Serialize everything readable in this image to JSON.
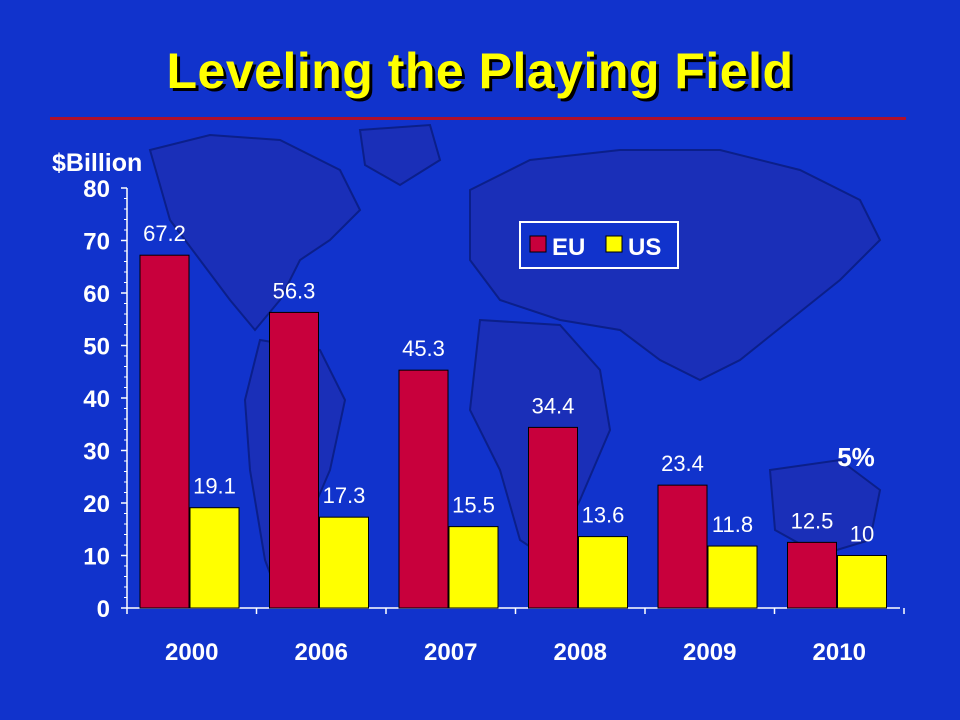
{
  "title": "Leveling the Playing Field",
  "colors": {
    "background": "#1133cc",
    "map": "#1a2fb8",
    "eu": "#c8003c",
    "us": "#ffff00",
    "title": "#ffff00",
    "rule": "#b0102c"
  },
  "chart_data": {
    "type": "bar",
    "ylabel": "$Billion",
    "xlabel": "",
    "ylim": [
      0,
      80
    ],
    "yticks": [
      0,
      10,
      20,
      30,
      40,
      50,
      60,
      70,
      80
    ],
    "categories": [
      "2000",
      "2006",
      "2007",
      "2008",
      "2009",
      "2010"
    ],
    "series": [
      {
        "name": "EU",
        "values": [
          67.2,
          56.3,
          45.3,
          34.4,
          23.4,
          12.5
        ]
      },
      {
        "name": "US",
        "values": [
          19.1,
          17.3,
          15.5,
          13.6,
          11.8,
          10
        ]
      }
    ],
    "value_labels": {
      "EU": [
        "67.2",
        "56.3",
        "45.3",
        "34.4",
        "23.4",
        "12.5"
      ],
      "US": [
        "19.1",
        "17.3",
        "15.5",
        "13.6",
        "11.8",
        "10"
      ]
    },
    "annotation": "5%",
    "legend": {
      "position": "top-right",
      "entries": [
        "EU",
        "US"
      ]
    },
    "grid": false
  }
}
